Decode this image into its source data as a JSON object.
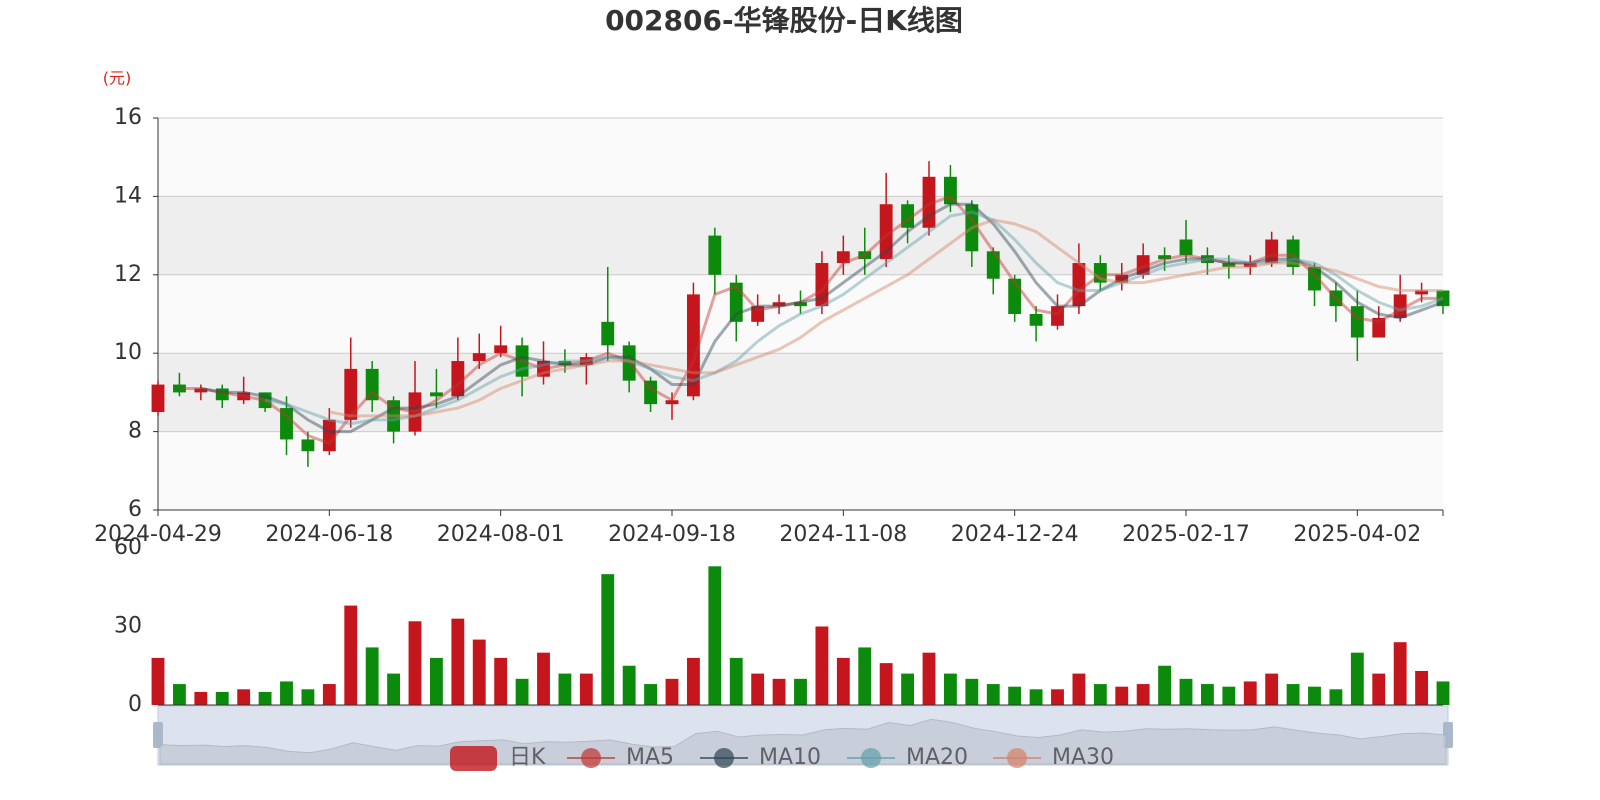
{
  "chart_data": [
    {
      "type": "candlestick",
      "title": "002806-华锋股份-日K线图",
      "y_unit": "(元)",
      "categories": [
        "2024-04-29",
        null,
        null,
        null,
        null,
        null,
        null,
        null,
        "2024-06-18",
        null,
        null,
        null,
        null,
        null,
        null,
        null,
        "2024-08-01",
        null,
        null,
        null,
        null,
        null,
        null,
        null,
        "2024-09-18",
        null,
        null,
        null,
        null,
        null,
        null,
        null,
        "2024-11-08",
        null,
        null,
        null,
        null,
        null,
        null,
        null,
        "2024-12-24",
        null,
        null,
        null,
        null,
        null,
        null,
        null,
        "2025-02-17",
        null,
        null,
        null,
        null,
        null,
        null,
        null,
        "2025-04-02",
        null,
        null,
        null,
        null
      ],
      "series": [
        {
          "name": "日K",
          "type": "candlestick",
          "up_color": "#c4161c",
          "down_color": "#0b8a0b",
          "values": [
            [
              8.5,
              9.2,
              8.4,
              9.3
            ],
            [
              9.2,
              9.0,
              8.9,
              9.5
            ],
            [
              9.0,
              9.1,
              8.8,
              9.2
            ],
            [
              9.1,
              8.8,
              8.6,
              9.2
            ],
            [
              8.8,
              9.0,
              8.7,
              9.4
            ],
            [
              9.0,
              8.6,
              8.5,
              9.0
            ],
            [
              8.6,
              7.8,
              7.4,
              8.9
            ],
            [
              7.8,
              7.5,
              7.1,
              8.0
            ],
            [
              7.5,
              8.3,
              7.4,
              8.6
            ],
            [
              8.3,
              9.6,
              8.1,
              10.4
            ],
            [
              9.6,
              8.8,
              8.5,
              9.8
            ],
            [
              8.8,
              8.0,
              7.7,
              8.9
            ],
            [
              8.0,
              9.0,
              7.9,
              9.8
            ],
            [
              9.0,
              8.9,
              8.6,
              9.6
            ],
            [
              8.9,
              9.8,
              8.8,
              10.4
            ],
            [
              9.8,
              10.0,
              9.6,
              10.5
            ],
            [
              10.0,
              10.2,
              9.9,
              10.7
            ],
            [
              10.2,
              9.4,
              8.9,
              10.4
            ],
            [
              9.4,
              9.8,
              9.2,
              10.3
            ],
            [
              9.8,
              9.7,
              9.5,
              10.1
            ],
            [
              9.7,
              9.9,
              9.2,
              10.0
            ],
            [
              10.8,
              10.2,
              9.8,
              12.2
            ],
            [
              10.2,
              9.3,
              9.0,
              10.3
            ],
            [
              9.3,
              8.7,
              8.5,
              9.4
            ],
            [
              8.7,
              8.8,
              8.3,
              9.0
            ],
            [
              8.9,
              11.5,
              8.8,
              11.8
            ],
            [
              13.0,
              12.0,
              11.5,
              13.2
            ],
            [
              11.8,
              10.8,
              10.3,
              12.0
            ],
            [
              10.8,
              11.2,
              10.7,
              11.5
            ],
            [
              11.2,
              11.3,
              11.0,
              11.5
            ],
            [
              11.3,
              11.2,
              11.0,
              11.6
            ],
            [
              11.2,
              12.3,
              11.0,
              12.6
            ],
            [
              12.3,
              12.6,
              12.0,
              13.0
            ],
            [
              12.6,
              12.4,
              12.0,
              13.2
            ],
            [
              12.4,
              13.8,
              12.2,
              14.6
            ],
            [
              13.8,
              13.2,
              12.8,
              13.9
            ],
            [
              13.2,
              14.5,
              13.0,
              14.9
            ],
            [
              14.5,
              13.8,
              13.6,
              14.8
            ],
            [
              13.8,
              12.6,
              12.2,
              13.9
            ],
            [
              12.6,
              11.9,
              11.5,
              12.7
            ],
            [
              11.9,
              11.0,
              10.8,
              12.0
            ],
            [
              11.0,
              10.7,
              10.3,
              11.2
            ],
            [
              10.7,
              11.2,
              10.6,
              11.5
            ],
            [
              11.2,
              12.3,
              11.0,
              12.8
            ],
            [
              12.3,
              11.8,
              11.6,
              12.5
            ],
            [
              11.8,
              12.0,
              11.6,
              12.3
            ],
            [
              12.0,
              12.5,
              11.9,
              12.8
            ],
            [
              12.5,
              12.4,
              12.1,
              12.7
            ],
            [
              12.9,
              12.5,
              12.3,
              13.4
            ],
            [
              12.5,
              12.3,
              12.0,
              12.7
            ],
            [
              12.3,
              12.2,
              11.9,
              12.5
            ],
            [
              12.2,
              12.3,
              12.0,
              12.5
            ],
            [
              12.3,
              12.9,
              12.2,
              13.1
            ],
            [
              12.9,
              12.2,
              12.0,
              13.0
            ],
            [
              12.2,
              11.6,
              11.2,
              12.3
            ],
            [
              11.6,
              11.2,
              10.8,
              11.8
            ],
            [
              11.2,
              10.4,
              9.8,
              11.6
            ],
            [
              10.4,
              10.9,
              10.4,
              11.2
            ],
            [
              10.9,
              11.5,
              10.8,
              12.0
            ],
            [
              11.5,
              11.6,
              11.3,
              11.8
            ],
            [
              11.6,
              11.2,
              11.0,
              11.6
            ]
          ]
        },
        {
          "name": "MA5",
          "type": "line",
          "color": "#c23531",
          "values": [
            null,
            9.1,
            9.1,
            9.0,
            8.9,
            8.8,
            8.4,
            7.9,
            7.7,
            8.4,
            9.0,
            8.6,
            8.5,
            8.8,
            9.2,
            9.7,
            10.0,
            9.8,
            9.6,
            9.7,
            9.8,
            10.0,
            9.8,
            9.1,
            8.8,
            9.8,
            11.5,
            11.7,
            11.1,
            11.2,
            11.3,
            11.6,
            12.3,
            12.5,
            13.0,
            13.4,
            13.8,
            14.0,
            13.4,
            12.6,
            11.8,
            11.1,
            11.0,
            11.6,
            12.0,
            12.0,
            12.2,
            12.4,
            12.5,
            12.4,
            12.3,
            12.3,
            12.5,
            12.5,
            12.0,
            11.4,
            10.9,
            10.8,
            11.1,
            11.4,
            11.4
          ]
        },
        {
          "name": "MA10",
          "type": "line",
          "color": "#2f4554",
          "values": [
            null,
            null,
            9.1,
            9.0,
            9.0,
            8.9,
            8.7,
            8.3,
            8.0,
            8.0,
            8.3,
            8.6,
            8.6,
            8.7,
            8.9,
            9.3,
            9.7,
            9.9,
            9.8,
            9.7,
            9.7,
            9.9,
            9.9,
            9.6,
            9.2,
            9.2,
            10.3,
            11.0,
            11.2,
            11.2,
            11.3,
            11.4,
            11.8,
            12.2,
            12.6,
            13.1,
            13.5,
            13.8,
            13.8,
            13.3,
            12.6,
            11.8,
            11.2,
            11.2,
            11.6,
            11.9,
            12.1,
            12.3,
            12.4,
            12.4,
            12.3,
            12.3,
            12.4,
            12.4,
            12.2,
            11.8,
            11.3,
            11.0,
            10.9,
            11.1,
            11.3
          ]
        },
        {
          "name": "MA20",
          "type": "line",
          "color": "#61a0a8",
          "values": [
            null,
            null,
            null,
            null,
            null,
            8.8,
            8.7,
            8.5,
            8.3,
            8.2,
            8.3,
            8.3,
            8.4,
            8.6,
            8.8,
            9.1,
            9.4,
            9.6,
            9.7,
            9.8,
            9.8,
            9.9,
            9.8,
            9.6,
            9.4,
            9.3,
            9.5,
            9.8,
            10.3,
            10.7,
            11.0,
            11.2,
            11.5,
            11.9,
            12.3,
            12.7,
            13.1,
            13.5,
            13.6,
            13.4,
            12.9,
            12.3,
            11.8,
            11.6,
            11.6,
            11.8,
            12.0,
            12.2,
            12.3,
            12.4,
            12.4,
            12.3,
            12.3,
            12.4,
            12.3,
            12.0,
            11.6,
            11.3,
            11.1,
            11.2,
            11.4
          ]
        },
        {
          "name": "MA30",
          "type": "line",
          "color": "#d48265",
          "values": [
            null,
            null,
            null,
            null,
            null,
            null,
            null,
            null,
            8.5,
            8.4,
            8.4,
            8.4,
            8.4,
            8.5,
            8.6,
            8.8,
            9.1,
            9.3,
            9.5,
            9.6,
            9.7,
            9.8,
            9.8,
            9.7,
            9.6,
            9.5,
            9.5,
            9.7,
            9.9,
            10.1,
            10.4,
            10.8,
            11.1,
            11.4,
            11.7,
            12.0,
            12.4,
            12.8,
            13.2,
            13.4,
            13.3,
            13.1,
            12.7,
            12.3,
            11.9,
            11.8,
            11.8,
            11.9,
            12.0,
            12.1,
            12.2,
            12.2,
            12.3,
            12.3,
            12.2,
            12.1,
            11.9,
            11.7,
            11.6,
            11.6,
            11.6
          ]
        }
      ],
      "ylim": [
        6,
        16
      ],
      "yticks": [
        6,
        8,
        10,
        12,
        14,
        16
      ],
      "grid": true,
      "split_area": true
    },
    {
      "type": "bar",
      "values": [
        18,
        8,
        5,
        5,
        6,
        5,
        9,
        6,
        8,
        38,
        22,
        12,
        32,
        18,
        33,
        25,
        18,
        10,
        20,
        12,
        12,
        50,
        15,
        8,
        10,
        18,
        53,
        18,
        12,
        10,
        10,
        30,
        18,
        22,
        16,
        12,
        20,
        12,
        10,
        8,
        7,
        6,
        6,
        12,
        8,
        7,
        8,
        15,
        10,
        8,
        7,
        9,
        12,
        8,
        7,
        6,
        20,
        12,
        24,
        13,
        9
      ],
      "ylim": [
        0,
        60
      ],
      "yticks": [
        0,
        30,
        60
      ]
    }
  ]
}
